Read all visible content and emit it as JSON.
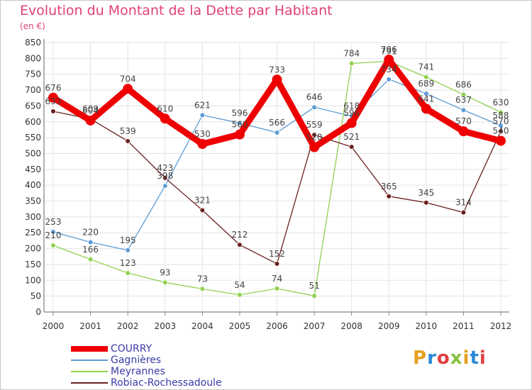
{
  "header": {
    "title": "Evolution du Montant de la Dette par Habitant",
    "unit": "(en €)"
  },
  "logo": {
    "text": "Proxiti",
    "letter_colors": [
      "#e8a020",
      "#2a8ad8",
      "#e04040",
      "#88c040",
      "#e8a020",
      "#2a8ad8",
      "#e04040"
    ]
  },
  "chart_data": {
    "type": "line",
    "title": "Evolution du Montant de la Dette par Habitant",
    "ylabel": "(en €)",
    "xlabel": "",
    "x": [
      "2000",
      "2001",
      "2002",
      "2003",
      "2004",
      "2005",
      "2006",
      "2007",
      "2008",
      "2009",
      "2010",
      "2011",
      "2012"
    ],
    "ylim": [
      0,
      850
    ],
    "yticks": [
      0,
      50,
      100,
      150,
      200,
      250,
      300,
      350,
      400,
      450,
      500,
      550,
      600,
      650,
      700,
      750,
      800,
      850
    ],
    "grid": true,
    "legend_position": "bottom-left",
    "series": [
      {
        "name": "COURRY",
        "color": "#ee0000",
        "values": [
          676,
          604,
          704,
          610,
          530,
          560,
          733,
          520,
          596,
          796,
          641,
          570,
          540
        ]
      },
      {
        "name": "Gagnières",
        "color": "#5b9bd5",
        "values": [
          253,
          220,
          195,
          398,
          621,
          596,
          566,
          646,
          618,
          734,
          689,
          637,
          588
        ]
      },
      {
        "name": "Meyrannes",
        "color": "#8fd14f",
        "values": [
          210,
          166,
          123,
          93,
          73,
          54,
          74,
          51,
          784,
          791,
          741,
          686,
          630
        ]
      },
      {
        "name": "Robiac-Rochessadoule",
        "color": "#6b1f1f",
        "values": [
          633,
          609,
          539,
          423,
          321,
          212,
          152,
          559,
          521,
          365,
          345,
          314,
          570
        ]
      }
    ]
  }
}
